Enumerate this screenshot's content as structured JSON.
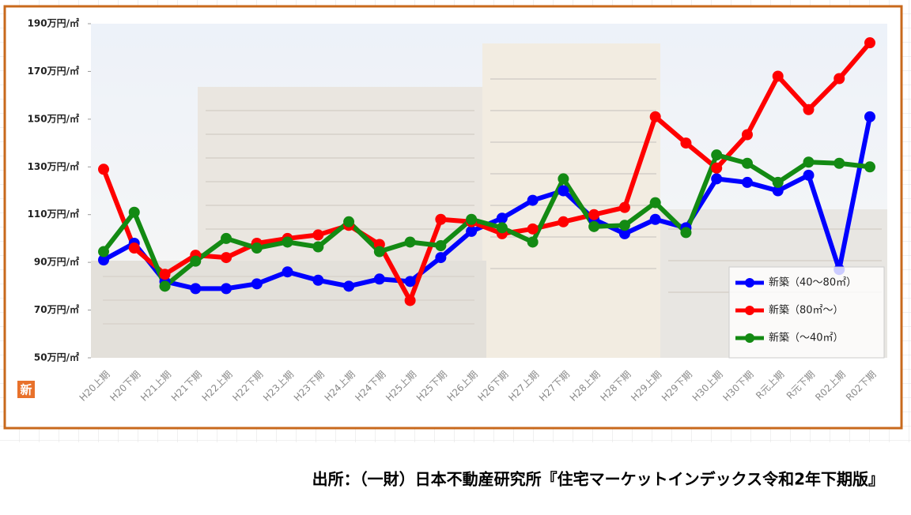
{
  "chart_data": {
    "type": "line",
    "badge": "新",
    "source": "出所：（一財）日本不動産研究所『住宅マーケットインデックス令和2年下期版』",
    "categories": [
      "H20上期",
      "H20下期",
      "H21上期",
      "H21下期",
      "H22上期",
      "H22下期",
      "H23上期",
      "H23下期",
      "H24上期",
      "H24下期",
      "H25上期",
      "H25下期",
      "H26上期",
      "H26下期",
      "H27上期",
      "H27下期",
      "H28上期",
      "H28下期",
      "H29上期",
      "H29下期",
      "H30上期",
      "H30下期",
      "R元上期",
      "R元下期",
      "R02上期",
      "R02下期"
    ],
    "series": [
      {
        "name": "新築（40～80㎡）",
        "color": "#0000ff",
        "values": [
          91,
          98,
          82,
          79,
          79,
          81,
          86,
          82.5,
          80,
          83,
          82,
          92,
          103,
          108.5,
          116,
          120,
          108,
          102,
          108,
          104.5,
          125,
          123.5,
          120,
          126.5,
          87,
          151
        ]
      },
      {
        "name": "新築（80㎡～）",
        "color": "#ff0000",
        "values": [
          129,
          96,
          85,
          93,
          92,
          98,
          100,
          101.5,
          105.5,
          97.5,
          74,
          108,
          107,
          102,
          104,
          107,
          110,
          113,
          151,
          140,
          129.5,
          143.5,
          168,
          154,
          167,
          182
        ]
      },
      {
        "name": "新築（～40㎡）",
        "color": "#138a13",
        "values": [
          94.5,
          111,
          80,
          90.5,
          100,
          96,
          98.5,
          96.5,
          107,
          94.5,
          98.5,
          97,
          108,
          104.5,
          98.5,
          125,
          105,
          105.5,
          115,
          102.5,
          135,
          131.5,
          123.5,
          132,
          131.5,
          130
        ]
      }
    ],
    "ylim": [
      50,
      190
    ],
    "yticks": [
      {
        "value": 50,
        "label": "50万円/㎡"
      },
      {
        "value": 70,
        "label": "70万円/㎡"
      },
      {
        "value": 90,
        "label": "90万円/㎡"
      },
      {
        "value": 110,
        "label": "110万円/㎡"
      },
      {
        "value": 130,
        "label": "130万円/㎡"
      },
      {
        "value": 150,
        "label": "150万円/㎡"
      },
      {
        "value": 170,
        "label": "170万円/㎡"
      },
      {
        "value": 190,
        "label": "190万円/㎡"
      }
    ],
    "legend": "lower-right"
  }
}
